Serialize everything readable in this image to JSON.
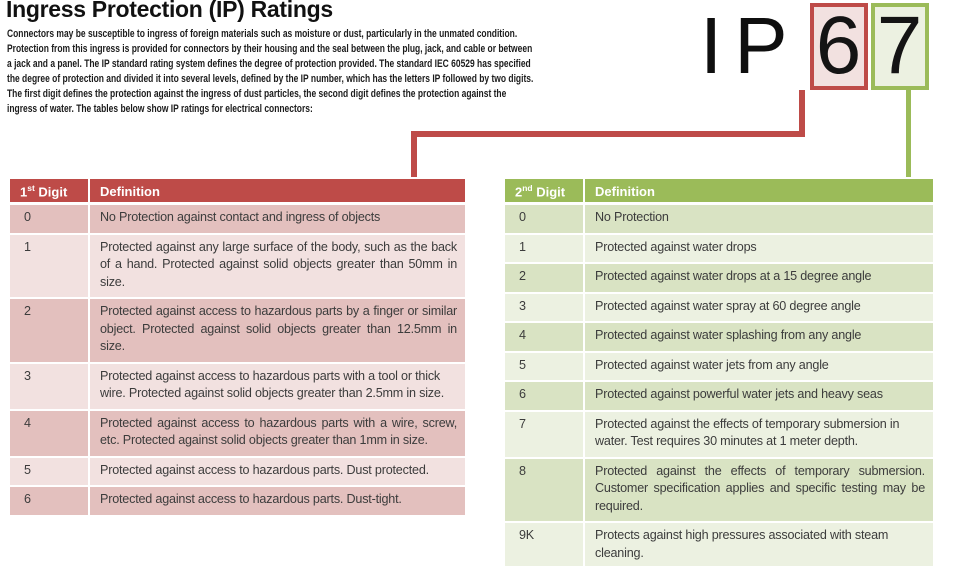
{
  "title": "Ingress Protection (IP) Ratings",
  "intro": "Connectors may be susceptible to ingress of foreign materials such as moisture or dust, particularly in the unmated condition. Protection from this ingress is provided for connectors by their housing and the seal between the plug, jack, and cable or between a jack and a panel. The IP standard rating system defines the degree of protection provided. The standard IEC 60529 has specified the degree of protection and divided it into several levels, defined by the IP number, which has the letters IP followed by two digits. The first digit defines the protection against the ingress of dust particles, the second digit defines the protection against the ingress of water. The tables below show IP ratings for electrical connectors:",
  "ip_badge": {
    "letter_i": "I",
    "letter_p": "P",
    "first_digit": "6",
    "second_digit": "7"
  },
  "colors": {
    "red": "#BE4B48",
    "green": "#9BBB59",
    "red_band_dark": "#E3C0BE",
    "red_band_light": "#F2E1E0",
    "green_band_dark": "#D9E3C3",
    "green_band_light": "#ECF1E1"
  },
  "first_digit_table": {
    "header": {
      "digit_num": "1",
      "digit_sup": "st",
      "digit_label": " Digit",
      "definition_label": "Definition"
    },
    "rows": [
      {
        "digit": "0",
        "definition": "No Protection against contact and ingress of objects"
      },
      {
        "digit": "1",
        "definition": "Protected against any large surface of the body, such as the back of a hand. Protected against solid objects greater than 50mm in size."
      },
      {
        "digit": "2",
        "definition": "Protected against access to hazardous parts by a finger or similar object. Protected against solid objects greater than 12.5mm in size."
      },
      {
        "digit": "3",
        "definition": "Protected against access to hazardous parts with a tool or thick wire. Protected against solid objects greater than 2.5mm in size."
      },
      {
        "digit": "4",
        "definition": "Protected against access to hazardous parts with a wire, screw, etc. Protected against solid objects greater than 1mm in size."
      },
      {
        "digit": "5",
        "definition": "Protected against access to hazardous parts. Dust protected."
      },
      {
        "digit": "6",
        "definition": "Protected against access to hazardous parts. Dust-tight."
      }
    ]
  },
  "second_digit_table": {
    "header": {
      "digit_num": "2",
      "digit_sup": "nd",
      "digit_label": " Digit",
      "definition_label": "Definition"
    },
    "rows": [
      {
        "digit": "0",
        "definition": "No Protection"
      },
      {
        "digit": "1",
        "definition": "Protected against water drops"
      },
      {
        "digit": "2",
        "definition": "Protected against water drops at a 15 degree angle"
      },
      {
        "digit": "3",
        "definition": "Protected against water spray at 60 degree angle"
      },
      {
        "digit": "4",
        "definition": "Protected against water splashing from any angle"
      },
      {
        "digit": "5",
        "definition": "Protected against water jets from any angle"
      },
      {
        "digit": "6",
        "definition": "Protected against powerful water jets and heavy seas"
      },
      {
        "digit": "7",
        "definition": "Protected against the effects of temporary submersion in water. Test requires 30 minutes at 1 meter depth."
      },
      {
        "digit": "8",
        "definition": "Protected against the effects of temporary submersion. Customer specification applies and specific testing may be required."
      },
      {
        "digit": "9K",
        "definition": "Protects against high pressures associated with steam cleaning."
      }
    ]
  }
}
